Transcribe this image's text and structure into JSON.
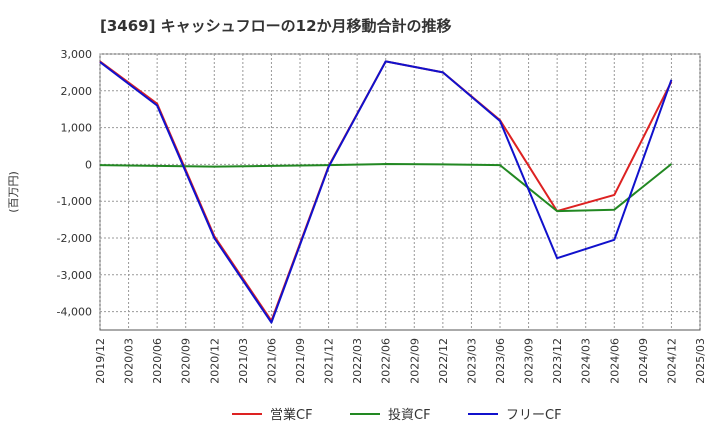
{
  "chart_data": {
    "type": "line",
    "title": "[3469]  キャッシュフローの12か月移動合計の推移",
    "ylabel": "(百万円)",
    "xlabel": "",
    "ylim": [
      -4500,
      3000
    ],
    "yticks": [
      3000,
      2000,
      1000,
      0,
      -1000,
      -2000,
      -3000,
      -4000
    ],
    "ytick_labels": [
      "3,000",
      "2,000",
      "1,000",
      "0",
      "-1,000",
      "-2,000",
      "-3,000",
      "-4,000"
    ],
    "categories": [
      "2019/12",
      "2020/03",
      "2020/06",
      "2020/09",
      "2020/12",
      "2021/03",
      "2021/06",
      "2021/09",
      "2021/12",
      "2022/03",
      "2022/06",
      "2022/09",
      "2022/12",
      "2023/03",
      "2023/06",
      "2023/09",
      "2023/12",
      "2024/03",
      "2024/06",
      "2024/09",
      "2024/12",
      "2025/03"
    ],
    "grid": true,
    "legend_position": "bottom-center",
    "series": [
      {
        "name": "営業CF",
        "color": "#dd2222",
        "points": [
          {
            "x": "2019/12",
            "y": 2800
          },
          {
            "x": "2020/06",
            "y": 1650
          },
          {
            "x": "2020/12",
            "y": -1950
          },
          {
            "x": "2021/06",
            "y": -4250
          },
          {
            "x": "2021/12",
            "y": -50
          },
          {
            "x": "2022/06",
            "y": 2800
          },
          {
            "x": "2022/12",
            "y": 2500
          },
          {
            "x": "2023/06",
            "y": 1200
          },
          {
            "x": "2023/12",
            "y": -1270
          },
          {
            "x": "2024/06",
            "y": -830
          },
          {
            "x": "2024/12",
            "y": 2250
          }
        ]
      },
      {
        "name": "投資CF",
        "color": "#228822",
        "points": [
          {
            "x": "2019/12",
            "y": -20
          },
          {
            "x": "2020/06",
            "y": -40
          },
          {
            "x": "2020/12",
            "y": -60
          },
          {
            "x": "2021/06",
            "y": -40
          },
          {
            "x": "2021/12",
            "y": -20
          },
          {
            "x": "2022/06",
            "y": 10
          },
          {
            "x": "2022/12",
            "y": 0
          },
          {
            "x": "2023/06",
            "y": -20
          },
          {
            "x": "2023/12",
            "y": -1270
          },
          {
            "x": "2024/06",
            "y": -1230
          },
          {
            "x": "2024/12",
            "y": 10
          }
        ]
      },
      {
        "name": "フリーCF",
        "color": "#1111cc",
        "points": [
          {
            "x": "2019/12",
            "y": 2780
          },
          {
            "x": "2020/06",
            "y": 1600
          },
          {
            "x": "2020/12",
            "y": -2000
          },
          {
            "x": "2021/06",
            "y": -4300
          },
          {
            "x": "2021/12",
            "y": -70
          },
          {
            "x": "2022/06",
            "y": 2800
          },
          {
            "x": "2022/12",
            "y": 2500
          },
          {
            "x": "2023/06",
            "y": 1180
          },
          {
            "x": "2023/12",
            "y": -2550
          },
          {
            "x": "2024/06",
            "y": -2050
          },
          {
            "x": "2024/12",
            "y": 2300
          }
        ]
      }
    ]
  }
}
